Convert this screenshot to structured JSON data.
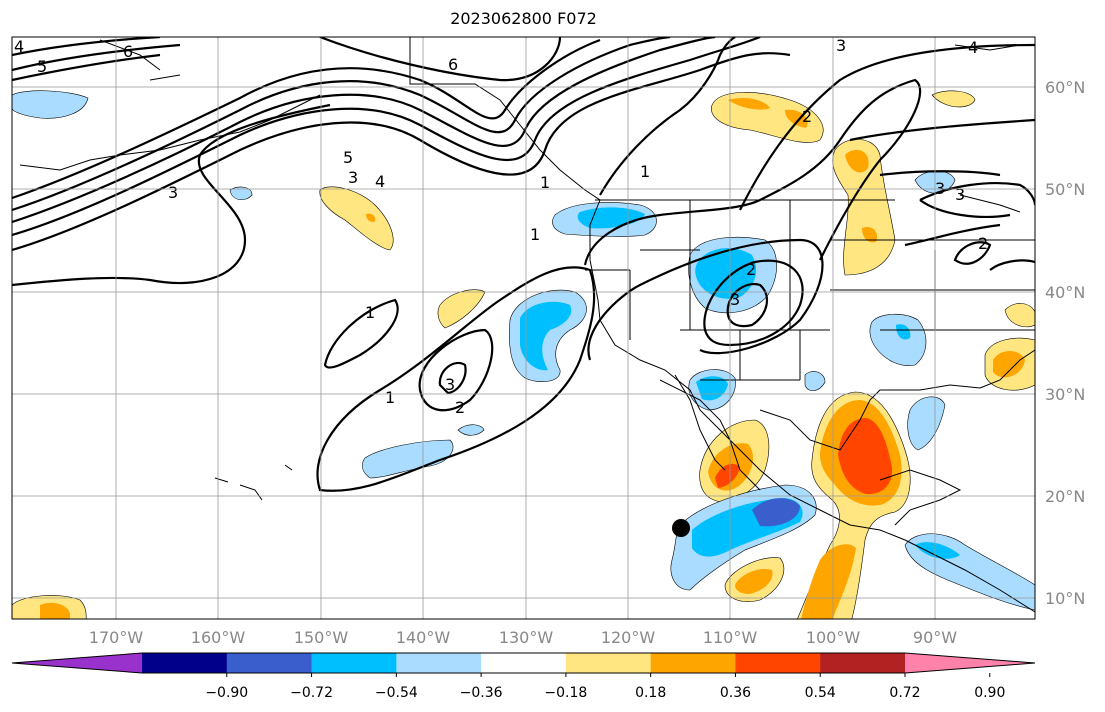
{
  "title": "2023062800 F072",
  "lon_ticks": [
    "170°W",
    "160°W",
    "150°W",
    "140°W",
    "130°W",
    "120°W",
    "110°W",
    "100°W",
    "90°W"
  ],
  "lat_ticks": [
    "60°N",
    "50°N",
    "40°N",
    "30°N",
    "20°N",
    "10°N"
  ],
  "colorbar": {
    "colors": [
      "#9932cc",
      "#00008b",
      "#3a5fcd",
      "#00bfff",
      "#aadcff",
      "#ffffff",
      "#ffe680",
      "#ffa500",
      "#ff4500",
      "#b22222",
      "#ff82ab"
    ],
    "labels": [
      "−0.90",
      "−0.72",
      "−0.54",
      "−0.36",
      "−0.18",
      "0.18",
      "0.36",
      "0.54",
      "0.72",
      "0.90"
    ]
  },
  "contour_labels": [
    "6",
    "5",
    "4",
    "3",
    "6",
    "5",
    "4",
    "3",
    "1",
    "3",
    "1",
    "2",
    "3",
    "2",
    "3",
    "1",
    "1",
    "2",
    "3",
    "1",
    "3",
    "4",
    "2"
  ]
}
